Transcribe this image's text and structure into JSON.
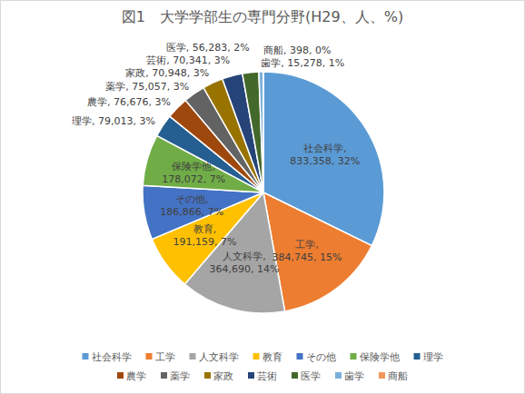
{
  "chart_data": {
    "type": "pie",
    "title": "図1　大学学部生の専門分野(H29、人、%)",
    "categories": [
      "社会科学",
      "工学",
      "人文科学",
      "教育",
      "その他",
      "保険学他",
      "理学",
      "農学",
      "薬学",
      "家政",
      "芸術",
      "医学",
      "歯学",
      "商船"
    ],
    "values": [
      833358,
      384745,
      364690,
      191159,
      186866,
      178072,
      79013,
      76676,
      75057,
      70948,
      70341,
      56283,
      15278,
      398
    ],
    "value_labels": [
      "833,358",
      "384,745",
      "364,690",
      "191,159",
      "186,866",
      "178,072",
      "79,013",
      "76,676",
      "75,057",
      "70,948",
      "70,341",
      "56,283",
      "15,278",
      "398"
    ],
    "percent_labels": [
      "32%",
      "15%",
      "14%",
      "7%",
      "7%",
      "7%",
      "3%",
      "3%",
      "3%",
      "3%",
      "3%",
      "2%",
      "1%",
      "0%"
    ],
    "colors": [
      "#5B9BD5",
      "#ED7D31",
      "#A5A5A5",
      "#FFC000",
      "#4472C4",
      "#70AD47",
      "#255E91",
      "#9E480E",
      "#636363",
      "#997300",
      "#264478",
      "#43682B",
      "#7CAFDD",
      "#F1975A"
    ],
    "data_labels": true,
    "legend": "bottom"
  }
}
